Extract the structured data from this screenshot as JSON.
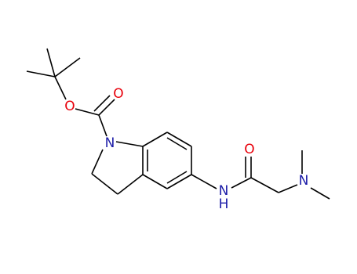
{
  "atoms": [
    "O",
    "O",
    "N",
    "N",
    "H",
    "O",
    "N"
  ]
}
